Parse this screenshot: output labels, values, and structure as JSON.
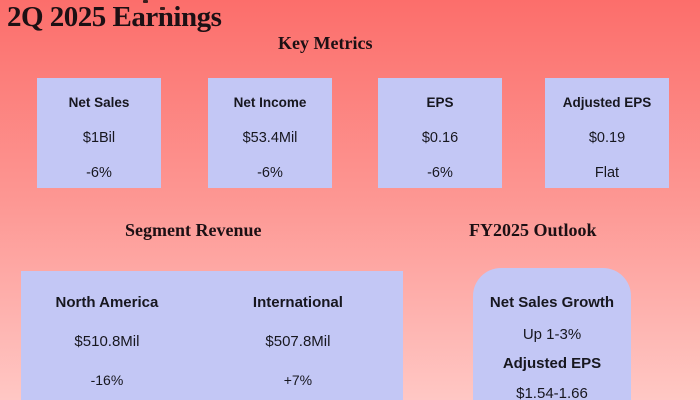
{
  "slide": {
    "title": "2Q 2025 Earnings"
  },
  "colors": {
    "background_top": "#fc6e6b",
    "background_bottom": "#ffc7c4",
    "card_fill": "#c3c7f5",
    "heading_text": "#1c1014",
    "card_text": "#17171f"
  },
  "key_metrics": {
    "heading": "Key Metrics",
    "cards": [
      {
        "label": "Net Sales",
        "value": "$1Bil",
        "change": "-6%"
      },
      {
        "label": "Net Income",
        "value": "$53.4Mil",
        "change": "-6%"
      },
      {
        "label": "EPS",
        "value": "$0.16",
        "change": "-6%"
      },
      {
        "label": "Adjusted EPS",
        "value": "$0.19",
        "change": "Flat"
      }
    ]
  },
  "segment_revenue": {
    "heading": "Segment Revenue",
    "segments": [
      {
        "label": "North America",
        "value": "$510.8Mil",
        "change": "-16%"
      },
      {
        "label": "International",
        "value": "$507.8Mil",
        "change": "+7%"
      }
    ]
  },
  "outlook": {
    "heading": "FY2025 Outlook",
    "items": [
      {
        "label": "Net Sales Growth",
        "value": "Up 1-3%"
      },
      {
        "label": "Adjusted EPS",
        "value": "$1.54-1.66"
      }
    ]
  }
}
